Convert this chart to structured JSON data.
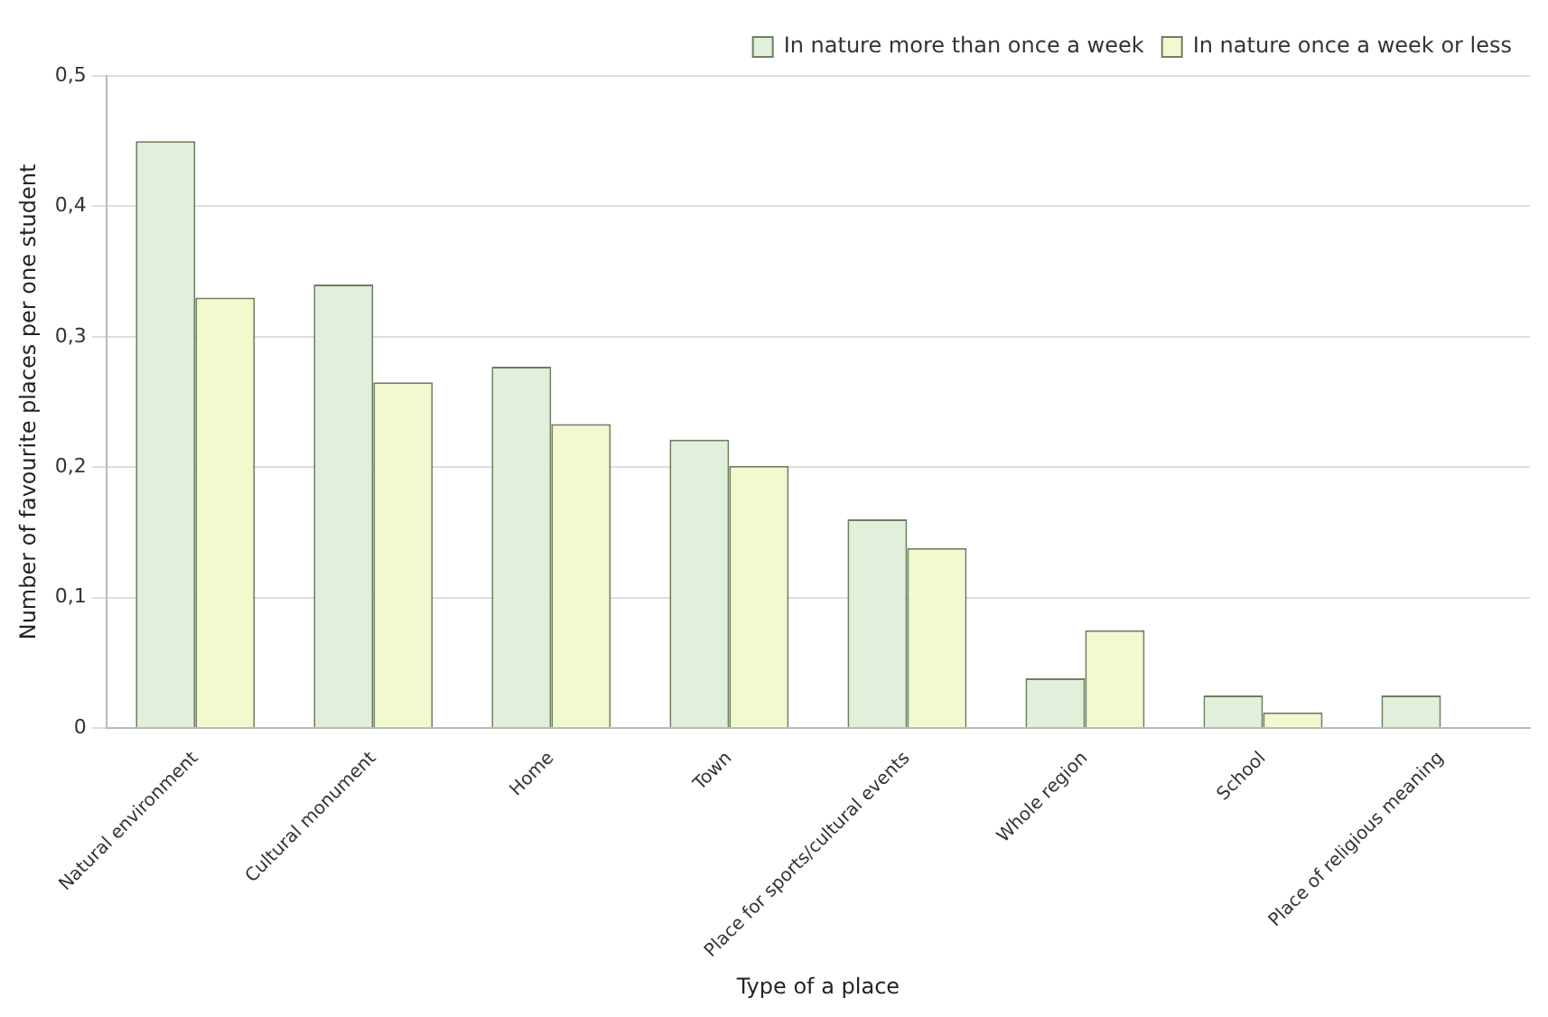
{
  "chart_data": {
    "type": "bar",
    "xlabel": "Type of a place",
    "ylabel": "Number of favourite places per one student",
    "categories": [
      "Natural environment",
      "Cultural monument",
      "Home",
      "Town",
      "Place for sports/cultural events",
      "Whole region",
      "School",
      "Place of religious meaning"
    ],
    "series": [
      {
        "name": "In nature more than once a week",
        "color": "#e2efda",
        "values": [
          0.45,
          0.34,
          0.277,
          0.221,
          0.16,
          0.038,
          0.025,
          0.025
        ]
      },
      {
        "name": "In nature once a week or less",
        "color": "#f2f9cf",
        "values": [
          0.33,
          0.265,
          0.233,
          0.201,
          0.138,
          0.075,
          0.012,
          0
        ]
      }
    ],
    "ylim": [
      0,
      0.5
    ],
    "yticks": [
      0,
      {
        "value": 0.1,
        "label": "0,1"
      },
      {
        "value": 0.2,
        "label": "0,2"
      },
      {
        "value": 0.3,
        "label": "0,3"
      },
      {
        "value": 0.4,
        "label": "0,4"
      },
      {
        "value": 0.5,
        "label": "0,5"
      }
    ],
    "grid": "y",
    "legend": "top right"
  }
}
